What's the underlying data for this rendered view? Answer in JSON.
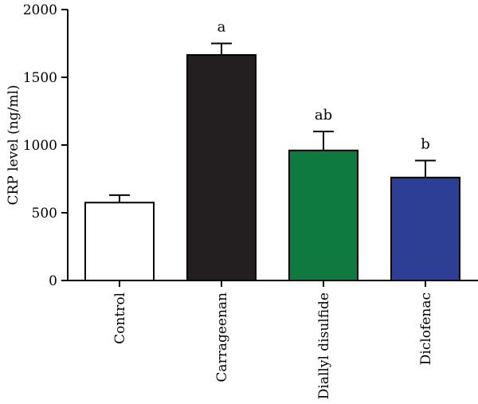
{
  "chart_data": {
    "type": "bar",
    "ylabel": "CRP level (ng/ml)",
    "xlabel": "",
    "ylim": [
      0,
      2000
    ],
    "yticks": [
      0,
      500,
      1000,
      1500,
      2000
    ],
    "grid": false,
    "categories": [
      "Control",
      "Carrageenan",
      "Diallyl disulfide",
      "Diclofenac"
    ],
    "values": [
      575,
      1665,
      960,
      760
    ],
    "errors": [
      55,
      85,
      140,
      125
    ],
    "significance": [
      "",
      "a",
      "ab",
      "b"
    ],
    "colors": [
      "#ffffff",
      "#231f20",
      "#0e7a40",
      "#2c3f95"
    ]
  }
}
